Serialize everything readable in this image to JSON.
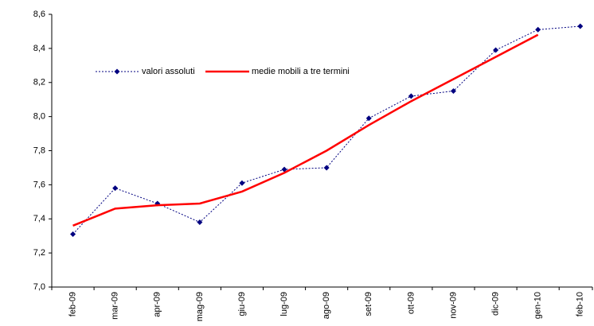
{
  "chart_data": {
    "type": "line",
    "categories": [
      "feb-09",
      "mar-09",
      "apr-09",
      "mag-09",
      "giu-09",
      "lug-09",
      "ago-09",
      "set-09",
      "ott-09",
      "nov-09",
      "dic-09",
      "gen-10",
      "feb-10"
    ],
    "series": [
      {
        "name": "valori assoluti",
        "color": "#000080",
        "style": "dotted-markers",
        "values": [
          7.31,
          7.58,
          7.49,
          7.38,
          7.61,
          7.69,
          7.7,
          7.99,
          8.12,
          8.15,
          8.39,
          8.51,
          8.53
        ]
      },
      {
        "name": "medie mobili a tre termini",
        "color": "#ff0000",
        "style": "solid",
        "values": [
          7.36,
          7.46,
          7.48,
          7.49,
          7.56,
          7.67,
          7.8,
          7.95,
          8.09,
          8.22,
          8.35,
          8.48,
          null
        ]
      }
    ],
    "ylim": [
      7.0,
      8.6
    ],
    "yticks": [
      {
        "value": 7.0,
        "label": "7,0"
      },
      {
        "value": 7.2,
        "label": "7,2"
      },
      {
        "value": 7.4,
        "label": "7,4"
      },
      {
        "value": 7.6,
        "label": "7,6"
      },
      {
        "value": 7.8,
        "label": "7,8"
      },
      {
        "value": 8.0,
        "label": "8,0"
      },
      {
        "value": 8.2,
        "label": "8,2"
      },
      {
        "value": 8.4,
        "label": "8,4"
      },
      {
        "value": 8.6,
        "label": "8,6"
      }
    ],
    "legend": "top-left"
  }
}
